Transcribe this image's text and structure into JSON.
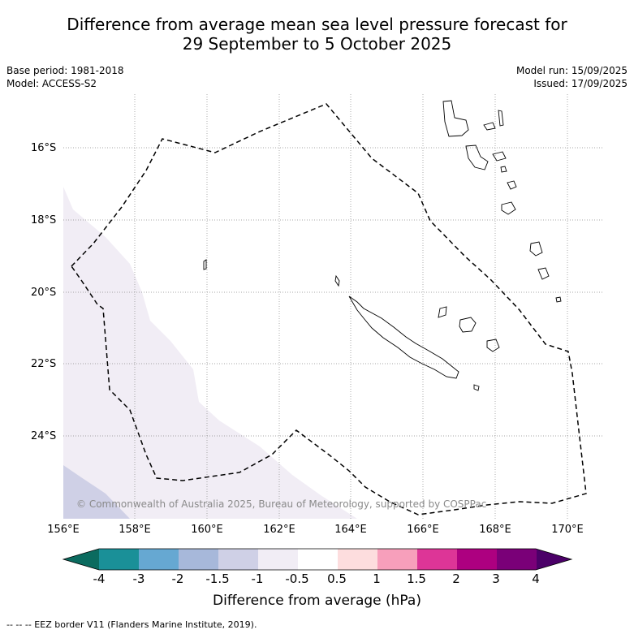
{
  "title_line1": "Difference from average mean sea level pressure forecast for",
  "title_line2": "29 September to 5 October 2025",
  "base_period": "Base period: 1981-2018",
  "model": "Model: ACCESS-S2",
  "model_run": "Model run: 15/09/2025",
  "issued": "Issued: 17/09/2025",
  "lat_labels": [
    "16°S",
    "18°S",
    "20°S",
    "22°S",
    "24°S"
  ],
  "lon_labels": [
    "156°E",
    "158°E",
    "160°E",
    "162°E",
    "164°E",
    "166°E",
    "168°E",
    "170°E"
  ],
  "copyright": "© Commonwealth of Australia 2025, Bureau of Meteorology, supported by COSPPac",
  "colorbar": {
    "title": "Difference from average (hPa)",
    "tick_labels": [
      "-4",
      "-3",
      "-2",
      "-1.5",
      "-1",
      "-0.5",
      "0.5",
      "1",
      "1.5",
      "2",
      "3",
      "4"
    ],
    "colors": [
      "#1a9098",
      "#66a8d2",
      "#a7b8da",
      "#cfd0e6",
      "#f1edf5",
      "#ffffff",
      "#fdddde",
      "#f79fbb",
      "#dd3597",
      "#ad0080",
      "#7a0078"
    ],
    "low_extend_color": "#0b6b5f",
    "high_extend_color": "#4b0068"
  },
  "footer": "--  --  -- EEZ border V11 (Flanders Marine Institute, 2019)."
}
